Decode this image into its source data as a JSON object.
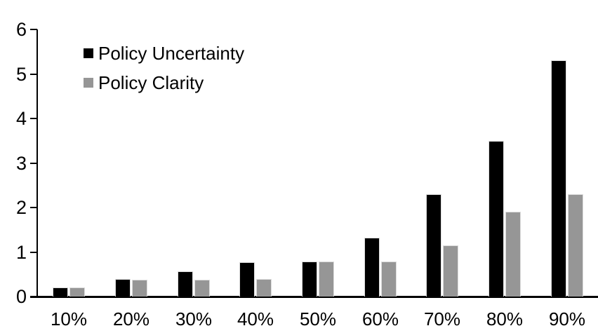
{
  "chart_data": {
    "type": "bar",
    "title": "",
    "xlabel": "",
    "ylabel": "",
    "categories": [
      "10%",
      "20%",
      "30%",
      "40%",
      "50%",
      "60%",
      "70%",
      "80%",
      "90%"
    ],
    "series": [
      {
        "name": "Policy Uncertainty",
        "color": "#000000",
        "values": [
          0.2,
          0.4,
          0.57,
          0.77,
          0.78,
          1.33,
          2.3,
          3.5,
          5.3
        ]
      },
      {
        "name": "Policy Clarity",
        "color": "#969696",
        "values": [
          0.2,
          0.38,
          0.38,
          0.39,
          0.78,
          0.78,
          1.15,
          1.9,
          2.3
        ]
      }
    ],
    "ylim": [
      0,
      6
    ],
    "yticks": [
      0,
      1,
      2,
      3,
      4,
      5,
      6
    ],
    "grid": false,
    "legend_position": "top-left",
    "axis_color": "#000000",
    "bar_outline_color": "#dcdcdc",
    "background_color": "#ffffff"
  }
}
